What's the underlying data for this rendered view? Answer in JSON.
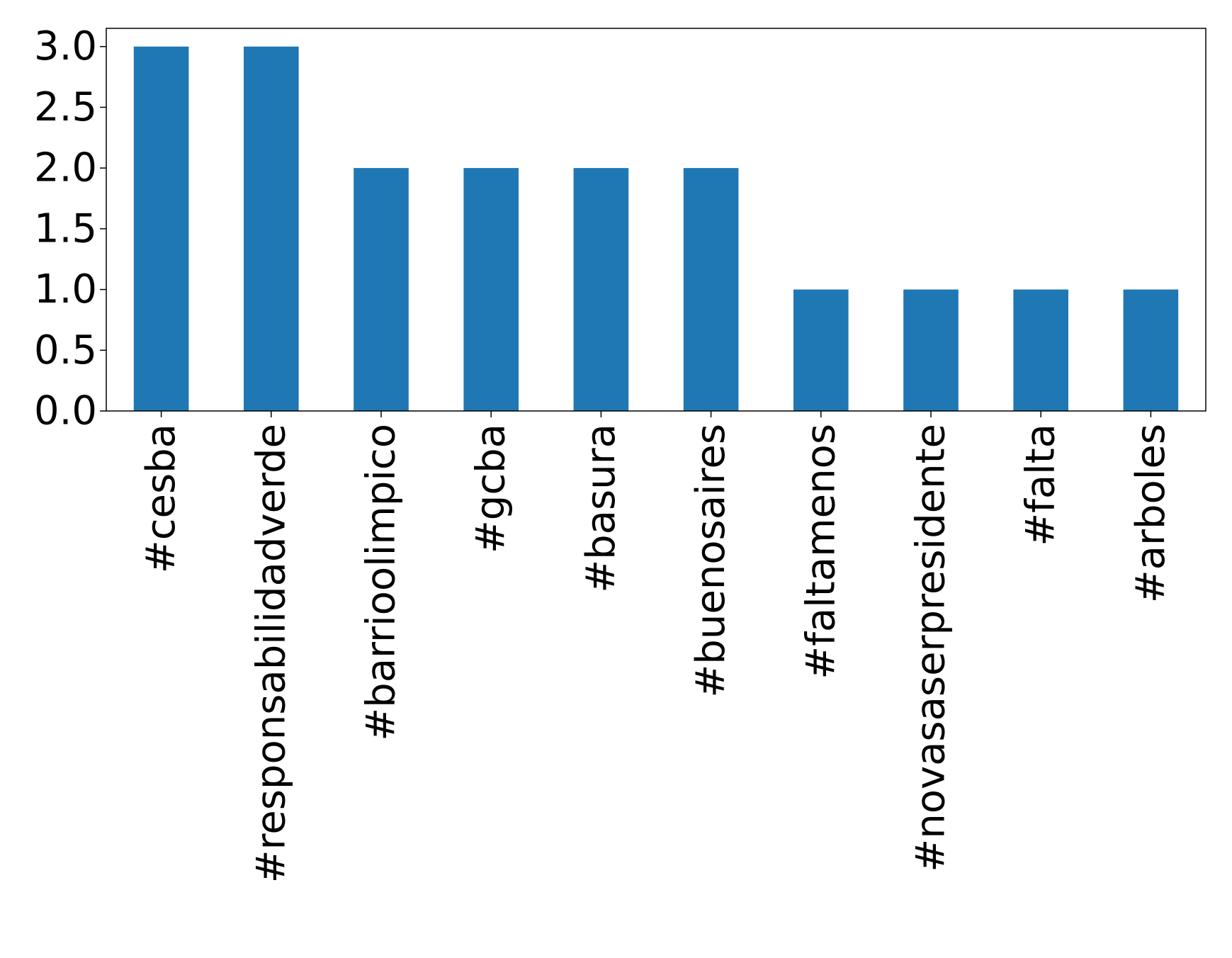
{
  "chart_data": {
    "type": "bar",
    "title": "",
    "xlabel": "",
    "ylabel": "",
    "categories": [
      "#cesba",
      "#responsabilidadverde",
      "#barrioolimpico",
      "#gcba",
      "#basura",
      "#buenosaires",
      "#faltamenos",
      "#novasaserpresidente",
      "#falta",
      "#arboles"
    ],
    "values": [
      3,
      3,
      2,
      2,
      2,
      2,
      1,
      1,
      1,
      1
    ],
    "ylim": [
      0,
      3.15
    ],
    "yticks": [
      "0.0",
      "0.5",
      "1.0",
      "1.5",
      "2.0",
      "2.5",
      "3.0"
    ],
    "bar_color": "#1f77b4",
    "grid": false,
    "legend": "none"
  }
}
